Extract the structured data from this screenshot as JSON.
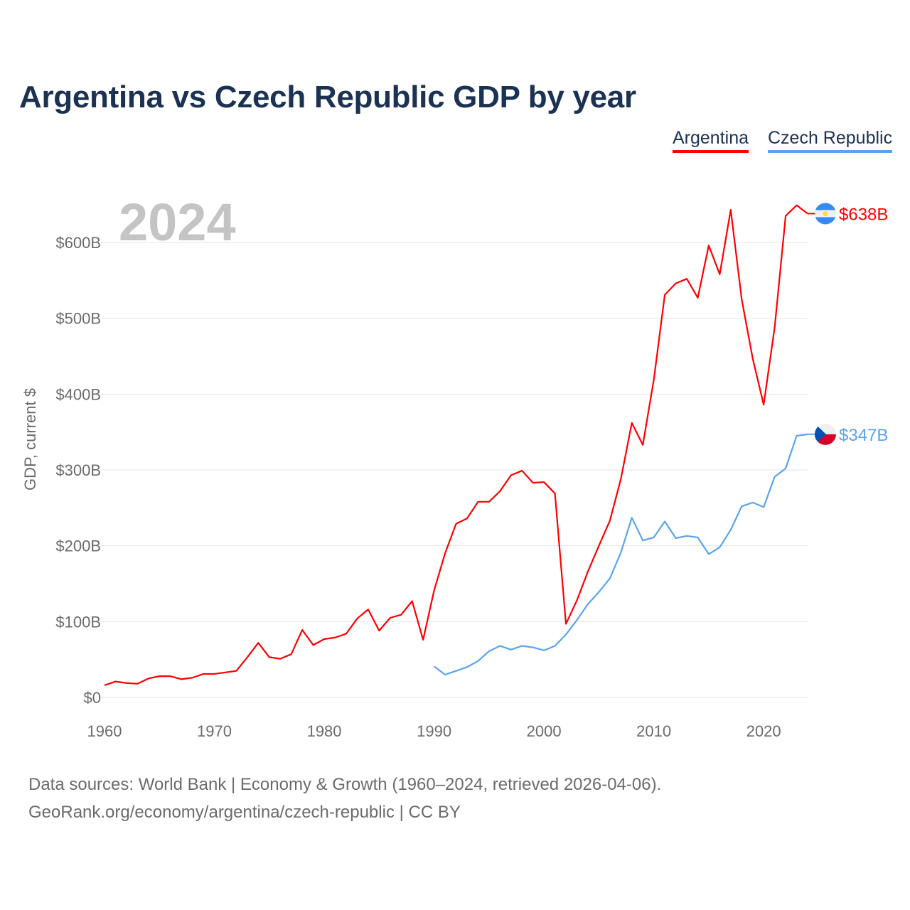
{
  "chart_data": {
    "type": "line",
    "title": "Argentina vs Czech Republic GDP by year",
    "xlabel": "",
    "ylabel": "GDP, current $",
    "year_watermark": "2024",
    "xlim": [
      1960,
      2024
    ],
    "ylim": [
      0,
      600
    ],
    "x_ticks": [
      1960,
      1970,
      1980,
      1990,
      2000,
      2010,
      2020
    ],
    "x_tick_labels": [
      "1960",
      "1970",
      "1980",
      "1990",
      "2000",
      "2010",
      "2020"
    ],
    "y_ticks": [
      0,
      100,
      200,
      300,
      400,
      500,
      600
    ],
    "y_tick_labels": [
      "$0",
      "$100B",
      "$200B",
      "$300B",
      "$400B",
      "$500B",
      "$600B"
    ],
    "grid": true,
    "legend_position": "top-right",
    "series": [
      {
        "name": "Argentina",
        "color": "#ff0000",
        "end_label": "$638B",
        "flag": "argentina-flag",
        "start_year": 1960,
        "values": [
          16,
          21,
          19,
          18,
          25,
          28,
          28,
          24,
          26,
          31,
          31,
          33,
          35,
          53,
          72,
          53,
          51,
          57,
          89,
          69,
          77,
          79,
          84,
          104,
          116,
          88,
          105,
          109,
          127,
          76,
          141,
          190,
          229,
          236,
          258,
          258,
          272,
          293,
          299,
          283,
          284,
          269,
          97,
          128,
          166,
          200,
          233,
          288,
          362,
          333,
          419,
          531,
          546,
          552,
          527,
          596,
          558,
          643,
          525,
          447,
          386,
          488,
          635,
          649,
          638
        ]
      },
      {
        "name": "Czech Republic",
        "color": "#5ba3ee",
        "end_label": "$347B",
        "flag": "czech-flag",
        "start_year": 1990,
        "values": [
          41,
          30,
          35,
          40,
          48,
          61,
          68,
          63,
          68,
          66,
          62,
          68,
          83,
          102,
          123,
          139,
          157,
          191,
          237,
          207,
          211,
          232,
          210,
          213,
          211,
          189,
          198,
          221,
          252,
          257,
          251,
          291,
          302,
          345,
          347
        ]
      }
    ]
  },
  "footer": {
    "line1": "Data sources: World Bank | Economy & Growth (1960–2024, retrieved 2026-04-06).",
    "line2": "GeoRank.org/economy/argentina/czech-republic | CC BY"
  }
}
